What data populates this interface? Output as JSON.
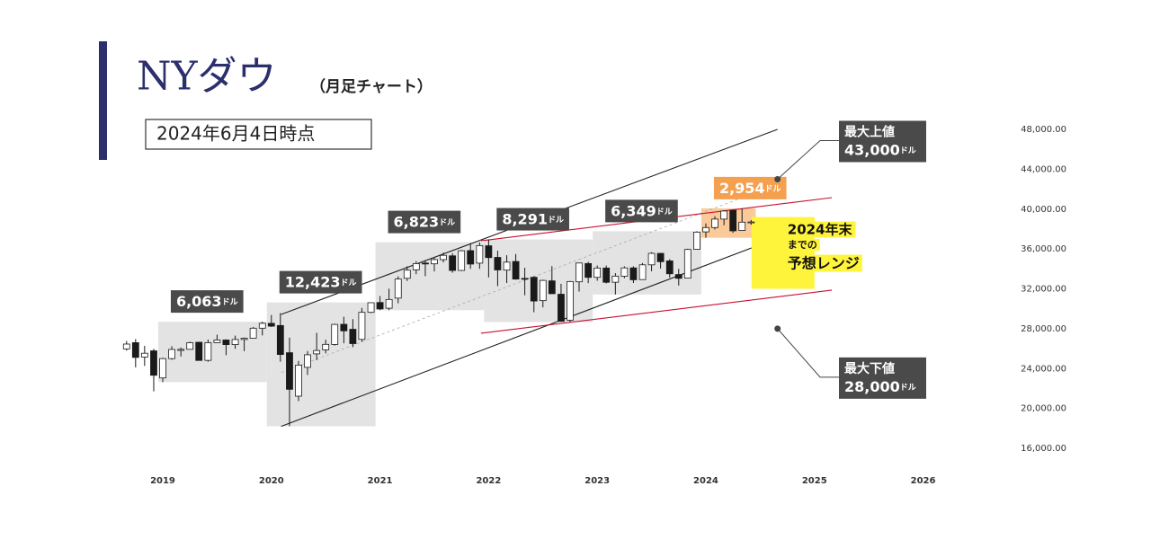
{
  "chart_data": {
    "type": "candlestick",
    "title": "NYダウ",
    "subtitle": "（月足チャート）",
    "date_note": "2024年6月4日時点",
    "unit": "ドル",
    "ohlc": {
      "x": [
        2018.667,
        2018.75,
        2018.833,
        2018.917,
        2019,
        2019.083,
        2019.167,
        2019.25,
        2019.333,
        2019.417,
        2019.5,
        2019.583,
        2019.667,
        2019.75,
        2019.833,
        2019.917,
        2020,
        2020.083,
        2020.167,
        2020.25,
        2020.333,
        2020.417,
        2020.5,
        2020.583,
        2020.667,
        2020.75,
        2020.833,
        2020.917,
        2021,
        2021.083,
        2021.167,
        2021.25,
        2021.333,
        2021.417,
        2021.5,
        2021.583,
        2021.667,
        2021.75,
        2021.833,
        2021.917,
        2022,
        2022.083,
        2022.167,
        2022.25,
        2022.333,
        2022.417,
        2022.5,
        2022.583,
        2022.667,
        2022.75,
        2022.833,
        2022.917,
        2023,
        2023.083,
        2023.167,
        2023.25,
        2023.333,
        2023.417,
        2023.5,
        2023.583,
        2023.667,
        2023.75,
        2023.833,
        2023.917,
        2024,
        2024.083,
        2024.167,
        2024.25,
        2024.333,
        2024.417
      ],
      "open": [
        25965,
        26598,
        25152,
        25779,
        23058,
        24999,
        25819,
        25929,
        26639,
        24820,
        26600,
        26864,
        26403,
        26917,
        27046,
        28051,
        28538,
        28320,
        25591,
        21228,
        24120,
        25475,
        25879,
        26419,
        28439,
        27941,
        26925,
        29640,
        30627,
        30054,
        31066,
        33054,
        33904,
        34584,
        34507,
        34926,
        35312,
        33844,
        35833,
        34576,
        36321,
        35153,
        33875,
        34742,
        33046,
        33156,
        30815,
        32799,
        31456,
        28855,
        32704,
        34536,
        33149,
        34087,
        32662,
        33258,
        34100,
        32928,
        34408,
        35559,
        34801,
        33434,
        33071,
        35963,
        37715,
        38149,
        38994,
        39872,
        37858,
        38702
      ],
      "high": [
        26769,
        26951,
        26277,
        25980,
        25075,
        26242,
        26109,
        26696,
        26690,
        26907,
        27399,
        26933,
        27306,
        27121,
        28175,
        28701,
        29374,
        29568,
        27102,
        24765,
        25758,
        27580,
        26897,
        28502,
        29199,
        28958,
        30082,
        30637,
        31272,
        32010,
        33259,
        34257,
        34784,
        34849,
        35172,
        35631,
        35565,
        35892,
        36566,
        36679,
        36953,
        35825,
        35372,
        35492,
        34118,
        33272,
        32910,
        34281,
        32504,
        32793,
        34590,
        34712,
        34342,
        34335,
        33572,
        34257,
        34257,
        34588,
        35679,
        35578,
        34979,
        34003,
        36025,
        37779,
        38562,
        39282,
        39890,
        39889,
        40078,
        38902
      ],
      "low": [
        25794,
        24123,
        24268,
        21713,
        22638,
        24883,
        25208,
        25929,
        24815,
        24680,
        26580,
        25339,
        25979,
        25744,
        27046,
        27325,
        28170,
        24681,
        18214,
        20735,
        23361,
        24843,
        25524,
        26305,
        26537,
        26143,
        26696,
        29564,
        29857,
        29856,
        30548,
        32787,
        33462,
        33271,
        33742,
        34646,
        33613,
        33785,
        34006,
        34006,
        33150,
        32272,
        32578,
        32913,
        31354,
        29653,
        30144,
        31508,
        28715,
        28662,
        31727,
        32573,
        32812,
        32542,
        31430,
        33066,
        32586,
        32927,
        33762,
        34029,
        33123,
        32327,
        33071,
        35963,
        37124,
        37948,
        38386,
        37612,
        37836,
        38430
      ],
      "close": [
        26458,
        25116,
        25538,
        23327,
        24999,
        25916,
        25929,
        26593,
        24815,
        26600,
        26864,
        26403,
        26917,
        27046,
        28051,
        28538,
        28256,
        25409,
        21917,
        24346,
        25383,
        25813,
        26428,
        28430,
        27782,
        26502,
        29638,
        30606,
        29983,
        30932,
        32982,
        33875,
        34529,
        34503,
        34935,
        35361,
        33844,
        35820,
        34484,
        36338,
        35132,
        33893,
        34678,
        32977,
        32990,
        30775,
        32845,
        31510,
        28726,
        32733,
        34590,
        33147,
        34086,
        32657,
        33274,
        34098,
        32908,
        34408,
        35560,
        34722,
        33508,
        33053,
        35951,
        37690,
        38150,
        38996,
        39807,
        37816,
        38686,
        38711
      ],
      "up_color": "#ffffff",
      "down_color": "#1a1a1a"
    },
    "ranges": {
      "years": [
        2019,
        2020,
        2021,
        2022,
        2023,
        2024
      ],
      "values": [
        6063,
        12423,
        6823,
        8291,
        6349,
        2954
      ],
      "value_labels": [
        "6,063",
        "12,423",
        "6,823",
        "8,291",
        "6,349",
        "2,954"
      ],
      "color": "#e3e3e3",
      "label_color": "#4a4a4a",
      "current_color": "#f9c48f",
      "current_label_color": "#f5a04f"
    },
    "trend_lines": [
      {
        "color": "#222222",
        "dashed": false,
        "x": [
          2020.09,
          2024.66
        ],
        "y": [
          29430,
          48000
        ]
      },
      {
        "color": "#222222",
        "dashed": false,
        "x": [
          2020.09,
          2024.66
        ],
        "y": [
          18200,
          37090
        ]
      },
      {
        "color": "#aaaaaa",
        "dashed": true,
        "x": [
          2020.09,
          2024.66
        ],
        "y": [
          23600,
          42500
        ]
      },
      {
        "color": "#c8102e",
        "dashed": false,
        "x": [
          2021.93,
          2025.16
        ],
        "y": [
          36820,
          41150
        ]
      },
      {
        "color": "#c8102e",
        "dashed": false,
        "x": [
          2021.93,
          2025.16
        ],
        "y": [
          27540,
          31870
        ]
      }
    ],
    "forecast": {
      "text": [
        "2024年末",
        "までの",
        "予想レンジ"
      ],
      "color": "#fff43c",
      "x": [
        2024.42,
        2025.0
      ],
      "y": [
        32000,
        39200
      ]
    },
    "callouts": [
      {
        "title": "最大上値",
        "value": 43000,
        "value_label": "43,000",
        "x": 2024.66
      },
      {
        "title": "最大下値",
        "value": 28000,
        "value_label": "28,000",
        "x": 2024.66
      }
    ],
    "xlim": [
      2018.5,
      2026.3
    ],
    "xticks": [
      2019,
      2020,
      2021,
      2022,
      2023,
      2024,
      2025,
      2026
    ],
    "ylim": [
      16000,
      48000
    ],
    "yticks": [
      {
        "value": 16000,
        "label": "16,000.00"
      },
      {
        "value": 20000,
        "label": "20,000.00"
      },
      {
        "value": 24000,
        "label": "24,000.00"
      },
      {
        "value": 28000,
        "label": "28,000.00"
      },
      {
        "value": 32000,
        "label": "32,000.00"
      },
      {
        "value": 36000,
        "label": "36,000.00"
      },
      {
        "value": 40000,
        "label": "40,000.00"
      },
      {
        "value": 44000,
        "label": "44,000.00"
      },
      {
        "value": 48000,
        "label": "48,000.00"
      }
    ]
  }
}
